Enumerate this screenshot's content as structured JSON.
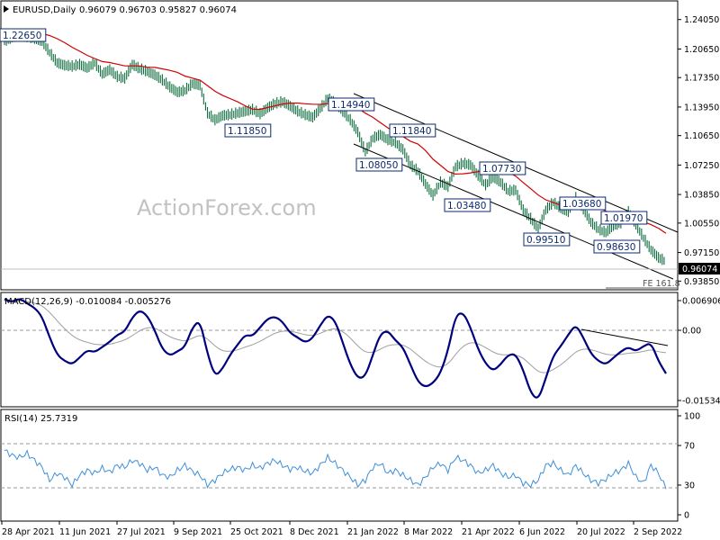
{
  "header": {
    "symbol": "EURUSD,Daily",
    "ohlc": "0.96079 0.96703 0.95827 0.96074"
  },
  "watermark": "ActionForex.com",
  "colors": {
    "candle": "#0e6d3e",
    "ma": "#d00000",
    "channel": "#000000",
    "macd": "#00007f",
    "signal": "#a0a0a0",
    "rsi": "#3f8fd8",
    "label_border": "#0d2a6b"
  },
  "chart_data": [
    {
      "type": "line",
      "title": "EURUSD,Daily",
      "subtitle": "0.96079 0.96703 0.95827 0.96074",
      "x_ticks": [
        "28 Apr 2021",
        "11 Jun 2021",
        "27 Jul 2021",
        "9 Sep 2021",
        "25 Oct 2021",
        "8 Dec 2021",
        "21 Jan 2022",
        "8 Mar 2022",
        "21 Apr 2022",
        "6 Jun 2022",
        "20 Jul 2022",
        "2 Sep 2022"
      ],
      "y_ticks": [
        1.2405,
        1.2065,
        1.1735,
        1.1395,
        1.1065,
        1.0725,
        1.0385,
        1.0055,
        0.9715,
        0.9385
      ],
      "ylim": [
        0.9295,
        1.261
      ],
      "last_price_label": "0.96074",
      "annotation": "FE 161.8",
      "series": [
        {
          "values": [
            1.215,
            1.219,
            1.223,
            1.22,
            1.218,
            1.215,
            1.202,
            1.19,
            1.187,
            1.186,
            1.188,
            1.184,
            1.19,
            1.177,
            1.182,
            1.174,
            1.172,
            1.188,
            1.183,
            1.18,
            1.176,
            1.17,
            1.162,
            1.156,
            1.158,
            1.166,
            1.164,
            1.132,
            1.124,
            1.129,
            1.13,
            1.132,
            1.134,
            1.136,
            1.131,
            1.138,
            1.143,
            1.145,
            1.14,
            1.134,
            1.13,
            1.127,
            1.137,
            1.149,
            1.144,
            1.134,
            1.124,
            1.11,
            1.087,
            1.103,
            1.107,
            1.101,
            1.098,
            1.09,
            1.072,
            1.065,
            1.05,
            1.037,
            1.052,
            1.047,
            1.07,
            1.074,
            1.072,
            1.06,
            1.049,
            1.058,
            1.052,
            1.042,
            1.043,
            1.02,
            1.01,
            0.998,
            1.02,
            1.029,
            1.022,
            1.018,
            1.034,
            1.021,
            1.006,
            0.998,
            0.994,
            1.002,
            1.005,
            1.018,
            1.003,
            0.988,
            0.974,
            0.965,
            0.9607
          ]
        }
      ],
      "levels": [
        "1.22650",
        "1.14940",
        "1.11850",
        "1.11840",
        "1.08050",
        "1.07730",
        "1.03480",
        "1.03680",
        "1.01970",
        "0.99510",
        "0.98630"
      ]
    },
    {
      "type": "line",
      "title": "MACD(12,26,9) -0.010084 -0.005276",
      "y_ticks": [
        "0.006906",
        "0.00",
        "-0.015348"
      ],
      "ylim": [
        -0.0175,
        0.0083
      ],
      "series": [
        {
          "values": [
            0.007,
            0.0063,
            0.0072,
            0.006,
            0.005,
            0.003,
            -0.0018,
            -0.0058,
            -0.0072,
            -0.008,
            -0.0064,
            -0.0047,
            -0.0052,
            -0.004,
            -0.0028,
            -0.0012,
            -0.0005,
            0.0028,
            0.0045,
            0.0032,
            -0.0002,
            -0.0045,
            -0.006,
            -0.005,
            -0.004,
            0.0005,
            0.0022,
            -0.0055,
            -0.0108,
            -0.009,
            -0.0058,
            -0.0035,
            -0.0012,
            -0.0015,
            0.0005,
            0.0025,
            0.003,
            0.0018,
            -0.0008,
            -0.0018,
            -0.003,
            -0.002,
            0.001,
            0.0034,
            0.002,
            -0.003,
            -0.008,
            -0.0112,
            -0.0108,
            -0.0058,
            -0.001,
            -0.0002,
            -0.0025,
            -0.004,
            -0.008,
            -0.012,
            -0.0132,
            -0.0123,
            -0.01,
            -0.0048,
            0.0032,
            0.004,
            0.0005,
            -0.0045,
            -0.0078,
            -0.0095,
            -0.008,
            -0.0058,
            -0.0056,
            -0.0092,
            -0.0145,
            -0.0162,
            -0.0112,
            -0.006,
            -0.0038,
            -0.0012,
            0.0012,
            -0.0018,
            -0.0055,
            -0.0072,
            -0.008,
            -0.0065,
            -0.005,
            -0.004,
            -0.005,
            -0.0038,
            -0.003,
            -0.0072,
            -0.0101
          ]
        },
        {
          "values": [
            0.0065,
            0.0064,
            0.0066,
            0.0064,
            0.0061,
            0.0055,
            0.004,
            0.002,
            0.0002,
            -0.0014,
            -0.0024,
            -0.0029,
            -0.0034,
            -0.0035,
            -0.0034,
            -0.0029,
            -0.0024,
            -0.0014,
            -0.0002,
            0.0005,
            0.0004,
            -0.0006,
            -0.0017,
            -0.0023,
            -0.0027,
            -0.002,
            -0.0012,
            -0.0021,
            -0.0038,
            -0.0049,
            -0.005,
            -0.0047,
            -0.004,
            -0.0035,
            -0.0027,
            -0.0017,
            -0.0008,
            -0.0003,
            -0.0004,
            -0.0007,
            -0.0012,
            -0.0014,
            -0.0009,
            -0.0001,
            0.0003,
            -0.0004,
            -0.0019,
            -0.0038,
            -0.0052,
            -0.0053,
            -0.0045,
            -0.0036,
            -0.0034,
            -0.0035,
            -0.0044,
            -0.0059,
            -0.0073,
            -0.0083,
            -0.0087,
            -0.0079,
            -0.0057,
            -0.0038,
            -0.0029,
            -0.0032,
            -0.0041,
            -0.0052,
            -0.0058,
            -0.0058,
            -0.0058,
            -0.0065,
            -0.0081,
            -0.0097,
            -0.01,
            -0.0092,
            -0.0081,
            -0.0067,
            -0.0051,
            -0.0044,
            -0.0046,
            -0.0051,
            -0.0057,
            -0.0058,
            -0.0057,
            -0.0054,
            -0.0053,
            -0.005,
            -0.0046,
            -0.0051,
            -0.0053
          ]
        }
      ]
    },
    {
      "type": "line",
      "title": "RSI(14) 25.7319",
      "y_ticks": [
        "100",
        "70",
        "30",
        "0"
      ],
      "ylim": [
        0,
        100
      ],
      "series": [
        {
          "values": [
            65,
            60,
            58,
            62,
            55,
            48,
            35,
            42,
            38,
            30,
            40,
            45,
            42,
            47,
            43,
            50,
            48,
            55,
            52,
            45,
            48,
            40,
            38,
            45,
            50,
            44,
            40,
            30,
            35,
            42,
            46,
            48,
            45,
            50,
            47,
            52,
            55,
            50,
            46,
            48,
            44,
            42,
            50,
            58,
            52,
            45,
            38,
            30,
            35,
            48,
            52,
            42,
            45,
            40,
            35,
            30,
            38,
            48,
            52,
            45,
            58,
            55,
            50,
            42,
            45,
            50,
            42,
            38,
            40,
            32,
            30,
            35,
            50,
            52,
            45,
            40,
            50,
            42,
            35,
            32,
            36,
            42,
            45,
            52,
            38,
            32,
            50,
            42,
            26
          ]
        }
      ]
    }
  ]
}
